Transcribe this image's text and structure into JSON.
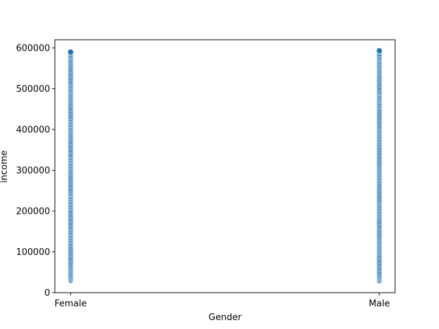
{
  "chart_data": {
    "type": "scatter",
    "xlabel": "Gender",
    "ylabel": "income",
    "categories": [
      "Female",
      "Male"
    ],
    "ylim": [
      0,
      620000
    ],
    "yticks": [
      0,
      100000,
      200000,
      300000,
      400000,
      500000,
      600000
    ],
    "ytick_labels": [
      "0",
      "100000",
      "200000",
      "300000",
      "400000",
      "500000",
      "600000"
    ],
    "grid": false,
    "point_color": "#1f77b4",
    "point_edge_color": "#ffffff",
    "series": [
      {
        "category": "Female",
        "values": [
          30000,
          33000,
          36000,
          39500,
          43000,
          47000,
          51000,
          55000,
          59000,
          63000,
          67000,
          71000,
          75000,
          79000,
          83000,
          87000,
          91000,
          95000,
          99000,
          103000,
          107000,
          111000,
          115000,
          119000,
          123000,
          127000,
          131000,
          135000,
          139000,
          143000,
          147000,
          151000,
          155000,
          159000,
          163000,
          167000,
          171000,
          175000,
          179000,
          183000,
          187000,
          191000,
          195000,
          199000,
          203000,
          207000,
          211000,
          215000,
          219000,
          223000,
          227000,
          231000,
          235000,
          239000,
          243000,
          247000,
          251000,
          255000,
          259000,
          263000,
          267000,
          271000,
          275000,
          279000,
          283000,
          287000,
          291000,
          295000,
          299000,
          303000,
          307000,
          311000,
          315000,
          319000,
          323000,
          327000,
          331000,
          335000,
          339000,
          343000,
          347000,
          351000,
          355000,
          359000,
          363000,
          367000,
          371000,
          375000,
          379000,
          383000,
          387000,
          391000,
          395000,
          399000,
          403000,
          407000,
          411000,
          415000,
          419000,
          423000,
          427000,
          431000,
          435000,
          439000,
          443000,
          447000,
          451000,
          455000,
          459000,
          463000,
          467000,
          471000,
          475000,
          479000,
          483000,
          487000,
          491000,
          495000,
          499000,
          503000,
          507000,
          511000,
          515000,
          519000,
          523000,
          527000,
          531000,
          535000,
          539000,
          543000,
          547000,
          551000,
          555000,
          559000,
          563000,
          567000,
          571000,
          575000,
          579000,
          583000,
          587000,
          590000
        ]
      },
      {
        "category": "Male",
        "values": [
          29000,
          32000,
          35500,
          38500,
          42000,
          46000,
          50000,
          54000,
          58000,
          62000,
          66000,
          70000,
          74000,
          78000,
          82000,
          86000,
          90000,
          94000,
          98000,
          102000,
          106000,
          110000,
          114000,
          118000,
          122000,
          126000,
          130000,
          134000,
          138000,
          142000,
          146000,
          150000,
          154000,
          158000,
          162000,
          166000,
          170000,
          174000,
          178000,
          182000,
          186000,
          190000,
          194000,
          198000,
          202000,
          206000,
          210000,
          214000,
          218000,
          222000,
          226000,
          230000,
          234000,
          238000,
          242000,
          246000,
          250000,
          254000,
          258000,
          262000,
          266000,
          270000,
          274000,
          278000,
          282000,
          286000,
          290000,
          294000,
          298000,
          302000,
          306000,
          310000,
          314000,
          318000,
          322000,
          326000,
          330000,
          334000,
          338000,
          342000,
          346000,
          350000,
          354000,
          358000,
          362000,
          366000,
          370000,
          374000,
          378000,
          382000,
          386000,
          390000,
          394000,
          398000,
          402000,
          406000,
          410000,
          414000,
          418000,
          422000,
          426000,
          430000,
          434000,
          438000,
          442000,
          446000,
          450000,
          454000,
          458000,
          462000,
          466000,
          470000,
          474000,
          478000,
          482000,
          486000,
          490000,
          494000,
          498000,
          502000,
          506000,
          510000,
          514000,
          518000,
          522000,
          526000,
          530000,
          534000,
          538000,
          542000,
          546000,
          550000,
          554000,
          558000,
          562000,
          566000,
          570000,
          574000,
          578000,
          582000,
          586000,
          590000,
          593000
        ]
      }
    ]
  }
}
